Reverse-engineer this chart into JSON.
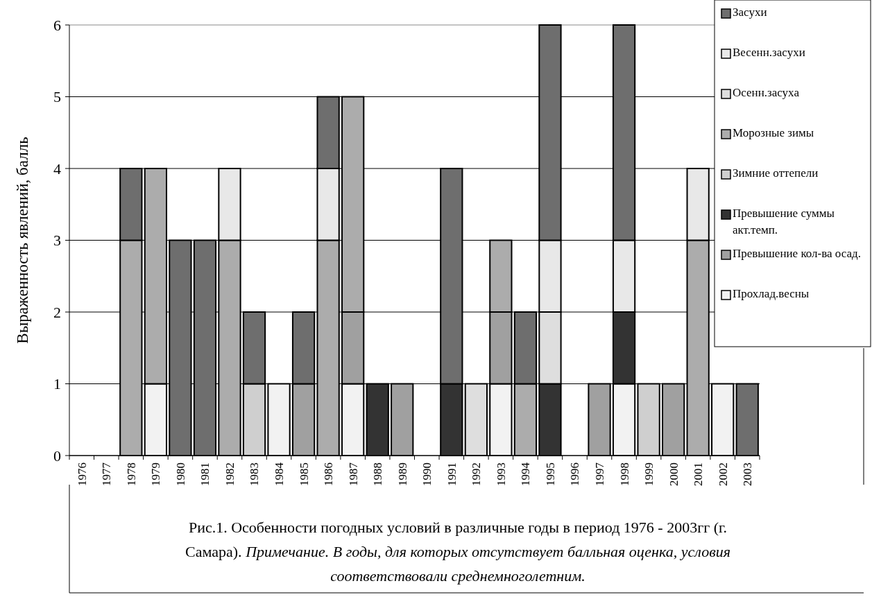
{
  "chart_data": {
    "type": "bar",
    "stacked": true,
    "title": "Рис.1.  Особенности погодных условий в различные годы в период 1976 - 2003гг (г. Самара).",
    "annotations": [
      "Примечание.  В годы, для которых отсутствует балльная оценка, условия соответствовали среднемноголетним."
    ],
    "ylabel": "Выраженность явлений, балль",
    "categories": [
      "1976",
      "1977",
      "1978",
      "1979",
      "1980",
      "1981",
      "1982",
      "1983",
      "1984",
      "1985",
      "1986",
      "1987",
      "1988",
      "1989",
      "1990",
      "1991",
      "1992",
      "1993",
      "1994",
      "1995",
      "1996",
      "1997",
      "1998",
      "1999",
      "2000",
      "2001",
      "2002",
      "2003"
    ],
    "series": [
      {
        "name": "Прохлад.весны",
        "color": "#f2f2f2",
        "values": [
          null,
          null,
          null,
          1,
          null,
          null,
          null,
          null,
          1,
          null,
          null,
          1,
          null,
          null,
          null,
          null,
          null,
          1,
          null,
          null,
          null,
          null,
          1,
          null,
          null,
          null,
          1,
          null
        ]
      },
      {
        "name": "Превышение кол-ва осад.",
        "color": "#a0a0a0",
        "values": [
          null,
          null,
          null,
          null,
          null,
          null,
          null,
          null,
          null,
          1,
          null,
          1,
          null,
          1,
          null,
          null,
          null,
          1,
          null,
          null,
          null,
          1,
          null,
          null,
          1,
          null,
          null,
          null
        ]
      },
      {
        "name": "Превышение суммы акт.темп.",
        "color": "#333333",
        "values": [
          null,
          null,
          null,
          null,
          null,
          null,
          null,
          null,
          null,
          null,
          null,
          null,
          1,
          null,
          null,
          1,
          null,
          null,
          null,
          1,
          null,
          null,
          1,
          null,
          null,
          null,
          null,
          null
        ]
      },
      {
        "name": "Зимние оттепели",
        "color": "#cfcfcf",
        "values": [
          null,
          null,
          null,
          null,
          null,
          null,
          null,
          1,
          null,
          null,
          null,
          null,
          null,
          null,
          null,
          null,
          null,
          null,
          null,
          null,
          null,
          null,
          null,
          1,
          null,
          null,
          null,
          null
        ]
      },
      {
        "name": "Морозные зимы",
        "color": "#acacac",
        "values": [
          null,
          null,
          3,
          3,
          null,
          null,
          3,
          null,
          null,
          null,
          3,
          3,
          null,
          null,
          null,
          null,
          null,
          1,
          1,
          null,
          null,
          null,
          null,
          null,
          null,
          3,
          null,
          null
        ]
      },
      {
        "name": "Осенн.засуха",
        "color": "#dedede",
        "values": [
          null,
          null,
          null,
          null,
          null,
          null,
          null,
          null,
          null,
          null,
          null,
          null,
          null,
          null,
          null,
          null,
          1,
          null,
          null,
          1,
          null,
          null,
          null,
          null,
          null,
          null,
          null,
          null
        ]
      },
      {
        "name": "Весенн.засухи",
        "color": "#e8e8e8",
        "values": [
          null,
          null,
          null,
          null,
          null,
          null,
          1,
          null,
          null,
          null,
          1,
          null,
          null,
          null,
          null,
          null,
          null,
          null,
          null,
          1,
          null,
          null,
          1,
          null,
          null,
          1,
          null,
          null
        ]
      },
      {
        "name": "Засухи",
        "color": "#6e6e6e",
        "values": [
          null,
          null,
          1,
          null,
          3,
          3,
          null,
          1,
          null,
          1,
          1,
          null,
          null,
          null,
          null,
          3,
          null,
          null,
          1,
          3,
          null,
          null,
          3,
          null,
          null,
          null,
          null,
          1
        ]
      }
    ],
    "ylim": [
      0,
      6
    ],
    "yticks": [
      0,
      1,
      2,
      3,
      4,
      5,
      6
    ],
    "grid": "y",
    "legend": "top right"
  }
}
